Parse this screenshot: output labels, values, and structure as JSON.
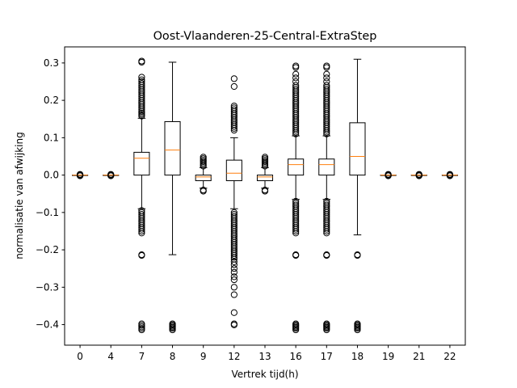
{
  "chart_data": {
    "type": "boxplot",
    "title": "Oost-Vlaanderen-25-Central-ExtraStep",
    "xlabel": "Vertrek tijd(h)",
    "ylabel": "normalisatie van afwijking",
    "ylim": [
      -0.455,
      0.343
    ],
    "yticks": [
      -0.4,
      -0.3,
      -0.2,
      -0.1,
      0.0,
      0.1,
      0.2,
      0.3
    ],
    "ytick_labels": [
      "−0.4",
      "−0.3",
      "−0.2",
      "−0.1",
      "0.0",
      "0.1",
      "0.2",
      "0.3"
    ],
    "grid": false,
    "colors": {
      "median": "#ff7f0e",
      "box": "#000000",
      "background": "#ffffff"
    },
    "boxes": [
      {
        "label": "0",
        "whislo": 0.0,
        "q1": 0.0,
        "med": 0.0,
        "q3": 0.0,
        "whishi": 0.0,
        "fliers": [
          -0.002,
          -0.001,
          0.001,
          0.002
        ]
      },
      {
        "label": "4",
        "whislo": 0.0,
        "q1": 0.0,
        "med": 0.0,
        "q3": 0.0,
        "whishi": 0.0,
        "fliers": [
          -0.002,
          -0.001,
          0.001,
          0.002
        ]
      },
      {
        "label": "7",
        "whislo": -0.09,
        "q1": 0.0,
        "med": 0.045,
        "q3": 0.061,
        "whishi": 0.152,
        "fliers": [
          0.158,
          0.162,
          0.166,
          0.17,
          0.175,
          0.18,
          0.185,
          0.19,
          0.195,
          0.2,
          0.205,
          0.21,
          0.215,
          0.22,
          0.225,
          0.23,
          0.235,
          0.24,
          0.245,
          0.25,
          0.255,
          0.262,
          0.302,
          0.305,
          -0.095,
          -0.1,
          -0.105,
          -0.11,
          -0.115,
          -0.12,
          -0.125,
          -0.13,
          -0.135,
          -0.14,
          -0.145,
          -0.15,
          -0.155,
          -0.213,
          -0.215,
          -0.398,
          -0.402,
          -0.406,
          -0.41,
          -0.414
        ]
      },
      {
        "label": "8",
        "whislo": -0.213,
        "q1": 0.0,
        "med": 0.067,
        "q3": 0.143,
        "whishi": 0.302,
        "fliers": [
          -0.398,
          -0.401,
          -0.404,
          -0.407,
          -0.41,
          -0.414
        ]
      },
      {
        "label": "9",
        "whislo": -0.035,
        "q1": -0.015,
        "med": -0.005,
        "q3": 0.0,
        "whishi": 0.02,
        "fliers": [
          0.024,
          0.028,
          0.032,
          0.036,
          0.04,
          0.044,
          0.048,
          -0.04,
          -0.043
        ]
      },
      {
        "label": "12",
        "whislo": -0.09,
        "q1": -0.015,
        "med": 0.005,
        "q3": 0.04,
        "whishi": 0.1,
        "fliers": [
          0.12,
          0.125,
          0.13,
          0.135,
          0.14,
          0.145,
          0.15,
          0.155,
          0.16,
          0.165,
          0.17,
          0.175,
          0.18,
          0.185,
          0.237,
          0.258,
          -0.1,
          -0.105,
          -0.11,
          -0.115,
          -0.12,
          -0.125,
          -0.13,
          -0.135,
          -0.14,
          -0.145,
          -0.15,
          -0.155,
          -0.16,
          -0.165,
          -0.17,
          -0.175,
          -0.18,
          -0.185,
          -0.19,
          -0.195,
          -0.2,
          -0.205,
          -0.21,
          -0.215,
          -0.22,
          -0.225,
          -0.232,
          -0.24,
          -0.25,
          -0.26,
          -0.272,
          -0.28,
          -0.3,
          -0.32,
          -0.368,
          -0.398,
          -0.401
        ]
      },
      {
        "label": "13",
        "whislo": -0.035,
        "q1": -0.015,
        "med": -0.005,
        "q3": 0.0,
        "whishi": 0.02,
        "fliers": [
          0.024,
          0.028,
          0.032,
          0.036,
          0.04,
          0.044,
          0.048,
          -0.04,
          -0.043
        ]
      },
      {
        "label": "16",
        "whislo": -0.065,
        "q1": 0.0,
        "med": 0.028,
        "q3": 0.043,
        "whishi": 0.105,
        "fliers": [
          0.11,
          0.115,
          0.12,
          0.125,
          0.13,
          0.135,
          0.14,
          0.145,
          0.15,
          0.155,
          0.16,
          0.165,
          0.17,
          0.175,
          0.18,
          0.185,
          0.19,
          0.195,
          0.2,
          0.205,
          0.21,
          0.215,
          0.22,
          0.225,
          0.23,
          0.235,
          0.24,
          0.25,
          0.26,
          0.27,
          0.288,
          0.292,
          -0.07,
          -0.075,
          -0.08,
          -0.085,
          -0.09,
          -0.095,
          -0.1,
          -0.105,
          -0.11,
          -0.115,
          -0.12,
          -0.125,
          -0.13,
          -0.135,
          -0.14,
          -0.145,
          -0.15,
          -0.155,
          -0.213,
          -0.215,
          -0.398,
          -0.401,
          -0.404,
          -0.407,
          -0.41,
          -0.414
        ]
      },
      {
        "label": "17",
        "whislo": -0.065,
        "q1": 0.0,
        "med": 0.028,
        "q3": 0.043,
        "whishi": 0.105,
        "fliers": [
          0.11,
          0.115,
          0.12,
          0.125,
          0.13,
          0.135,
          0.14,
          0.145,
          0.15,
          0.155,
          0.16,
          0.165,
          0.17,
          0.175,
          0.18,
          0.185,
          0.19,
          0.195,
          0.2,
          0.205,
          0.21,
          0.215,
          0.22,
          0.225,
          0.23,
          0.235,
          0.24,
          0.25,
          0.26,
          0.27,
          0.288,
          0.292,
          -0.07,
          -0.075,
          -0.08,
          -0.085,
          -0.09,
          -0.095,
          -0.1,
          -0.105,
          -0.11,
          -0.115,
          -0.12,
          -0.125,
          -0.13,
          -0.135,
          -0.14,
          -0.145,
          -0.15,
          -0.155,
          -0.213,
          -0.215,
          -0.398,
          -0.401,
          -0.404,
          -0.407,
          -0.41,
          -0.414
        ]
      },
      {
        "label": "18",
        "whislo": -0.16,
        "q1": 0.0,
        "med": 0.05,
        "q3": 0.14,
        "whishi": 0.31,
        "fliers": [
          -0.213,
          -0.215,
          -0.398,
          -0.401,
          -0.404,
          -0.407,
          -0.41,
          -0.414
        ]
      },
      {
        "label": "19",
        "whislo": 0.0,
        "q1": 0.0,
        "med": 0.0,
        "q3": 0.0,
        "whishi": 0.0,
        "fliers": [
          -0.002,
          -0.001,
          0.001,
          0.002
        ]
      },
      {
        "label": "21",
        "whislo": 0.0,
        "q1": 0.0,
        "med": 0.0,
        "q3": 0.0,
        "whishi": 0.0,
        "fliers": [
          -0.002,
          -0.001,
          0.001,
          0.002
        ]
      },
      {
        "label": "22",
        "whislo": 0.0,
        "q1": 0.0,
        "med": 0.0,
        "q3": 0.0,
        "whishi": 0.0,
        "fliers": [
          -0.002,
          -0.001,
          0.001,
          0.002
        ]
      }
    ]
  }
}
